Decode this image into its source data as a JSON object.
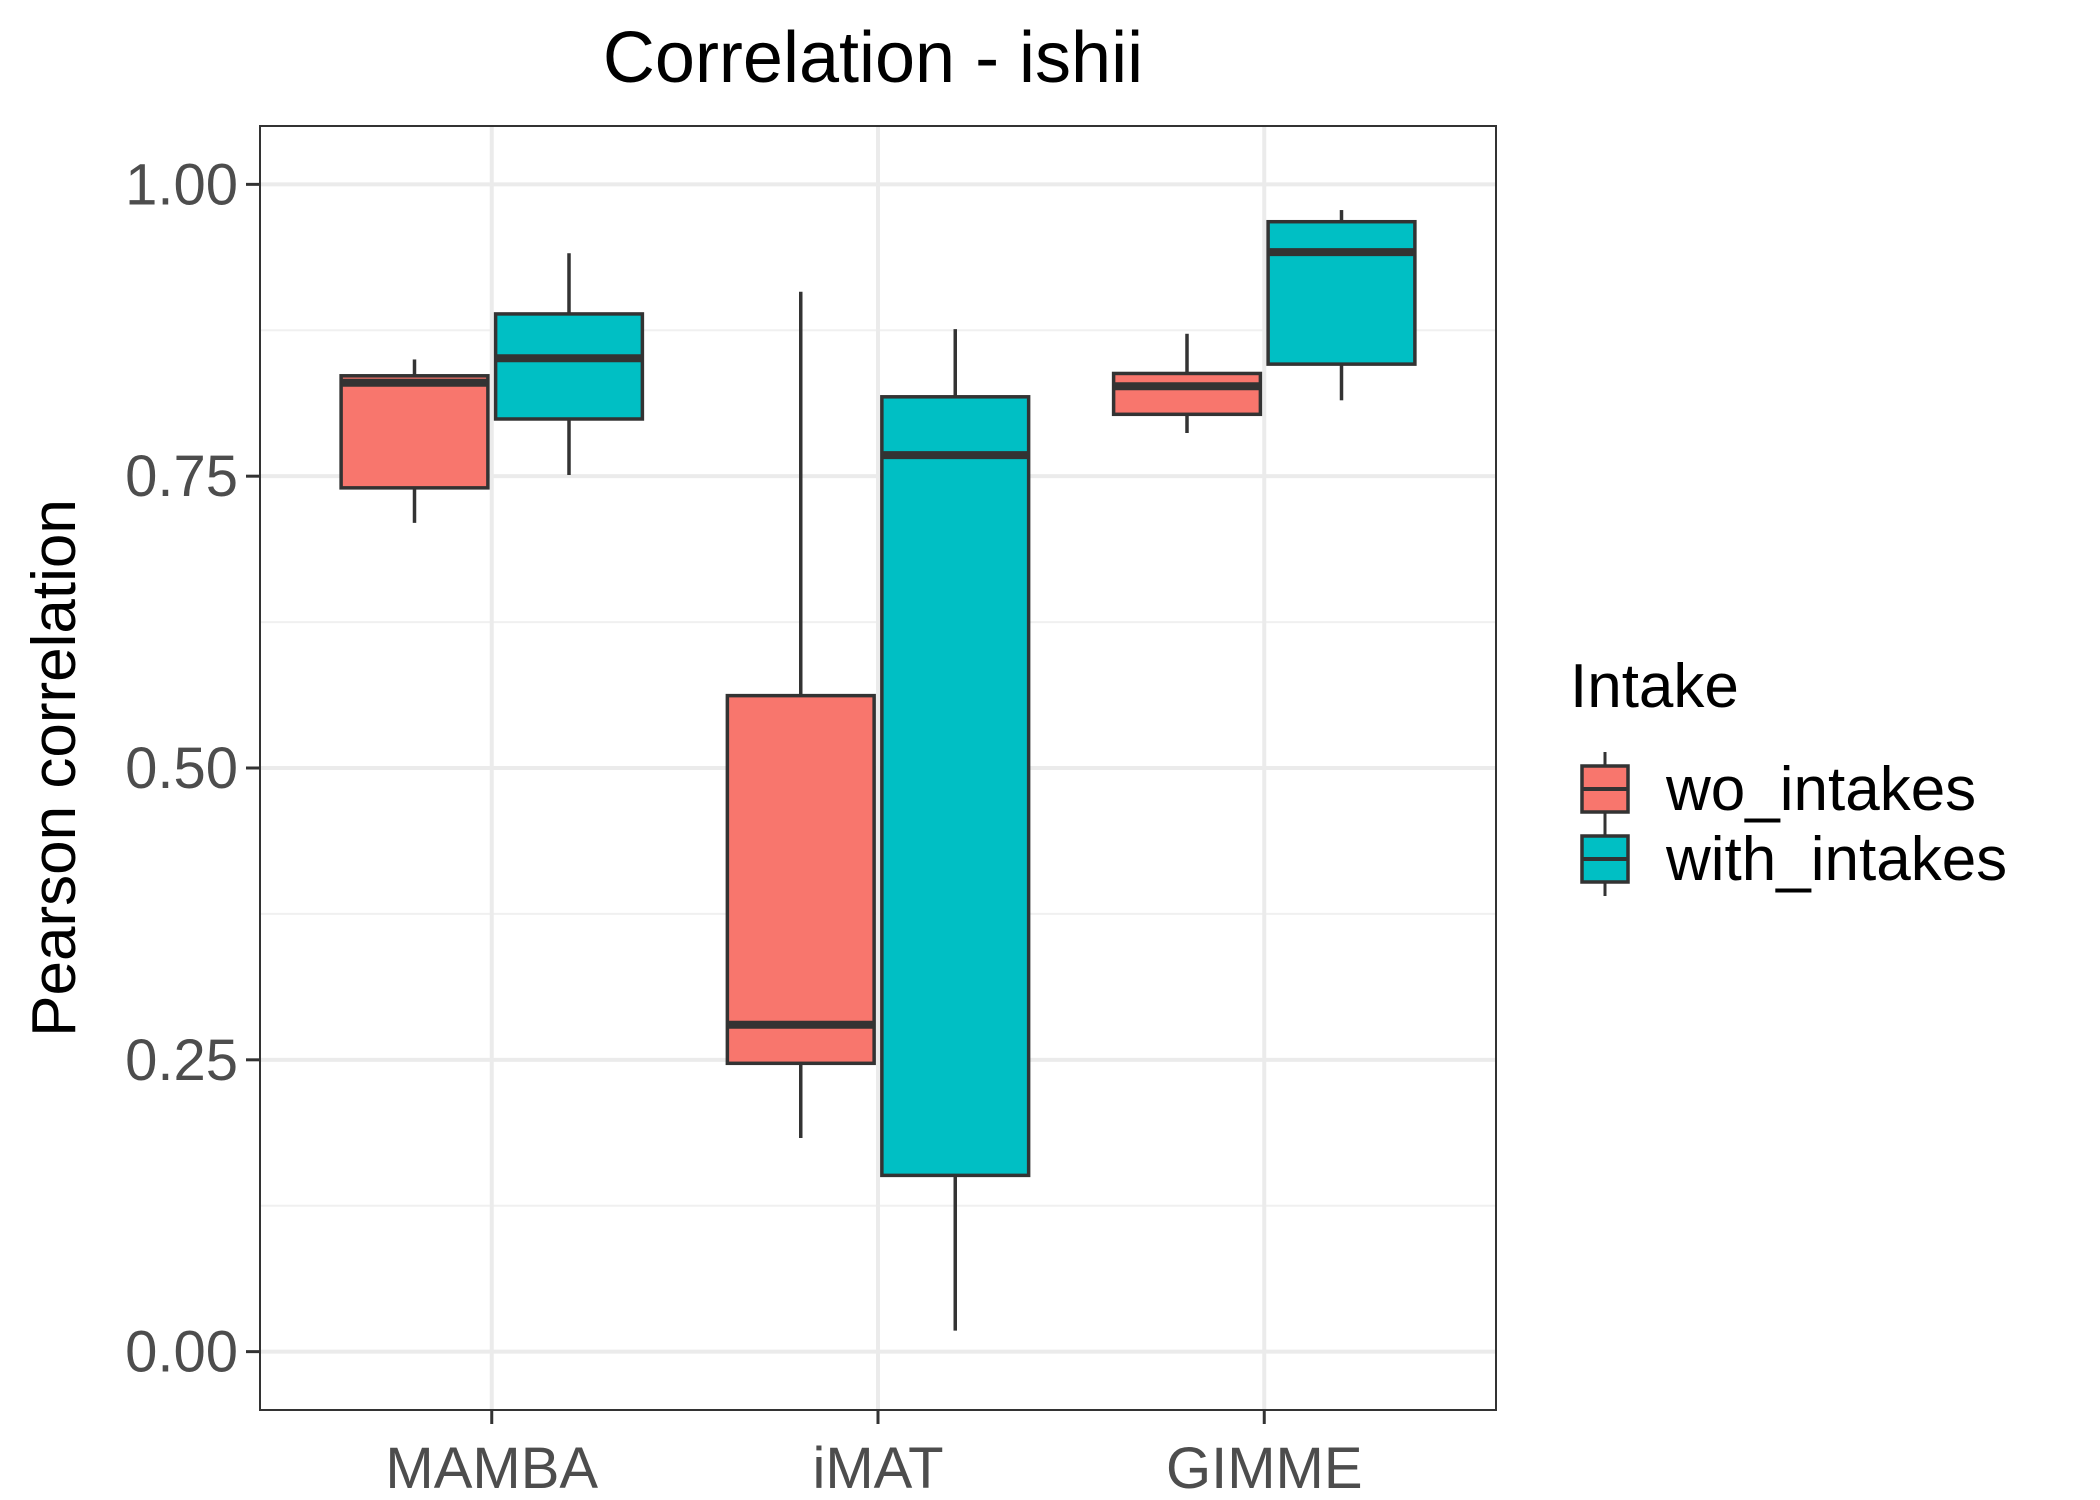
{
  "chart_data": {
    "type": "box",
    "title": "Correlation - ishii",
    "xlabel": "",
    "ylabel": "Pearson correlation",
    "categories": [
      "MAMBA",
      "iMAT",
      "GIMME"
    ],
    "ylim": [
      -0.05,
      1.05
    ],
    "yticks": [
      "0.00",
      "0.25",
      "0.50",
      "0.75",
      "1.00"
    ],
    "grid": true,
    "legend": {
      "title": "Intake",
      "placement": "right"
    },
    "series": [
      {
        "name": "wo_intakes",
        "color": "#F8766D",
        "boxes": [
          {
            "category": "MAMBA",
            "min": 0.71,
            "q1": 0.74,
            "median": 0.83,
            "q3": 0.836,
            "max": 0.85
          },
          {
            "category": "iMAT",
            "min": 0.183,
            "q1": 0.247,
            "median": 0.28,
            "q3": 0.562,
            "max": 0.908
          },
          {
            "category": "GIMME",
            "min": 0.787,
            "q1": 0.803,
            "median": 0.827,
            "q3": 0.838,
            "max": 0.872
          }
        ]
      },
      {
        "name": "with_intakes",
        "color": "#00BFC4",
        "boxes": [
          {
            "category": "MAMBA",
            "min": 0.751,
            "q1": 0.799,
            "median": 0.851,
            "q3": 0.889,
            "max": 0.941
          },
          {
            "category": "iMAT",
            "min": 0.018,
            "q1": 0.151,
            "median": 0.768,
            "q3": 0.818,
            "max": 0.876
          },
          {
            "category": "GIMME",
            "min": 0.815,
            "q1": 0.846,
            "median": 0.942,
            "q3": 0.968,
            "max": 0.978
          }
        ]
      }
    ]
  }
}
